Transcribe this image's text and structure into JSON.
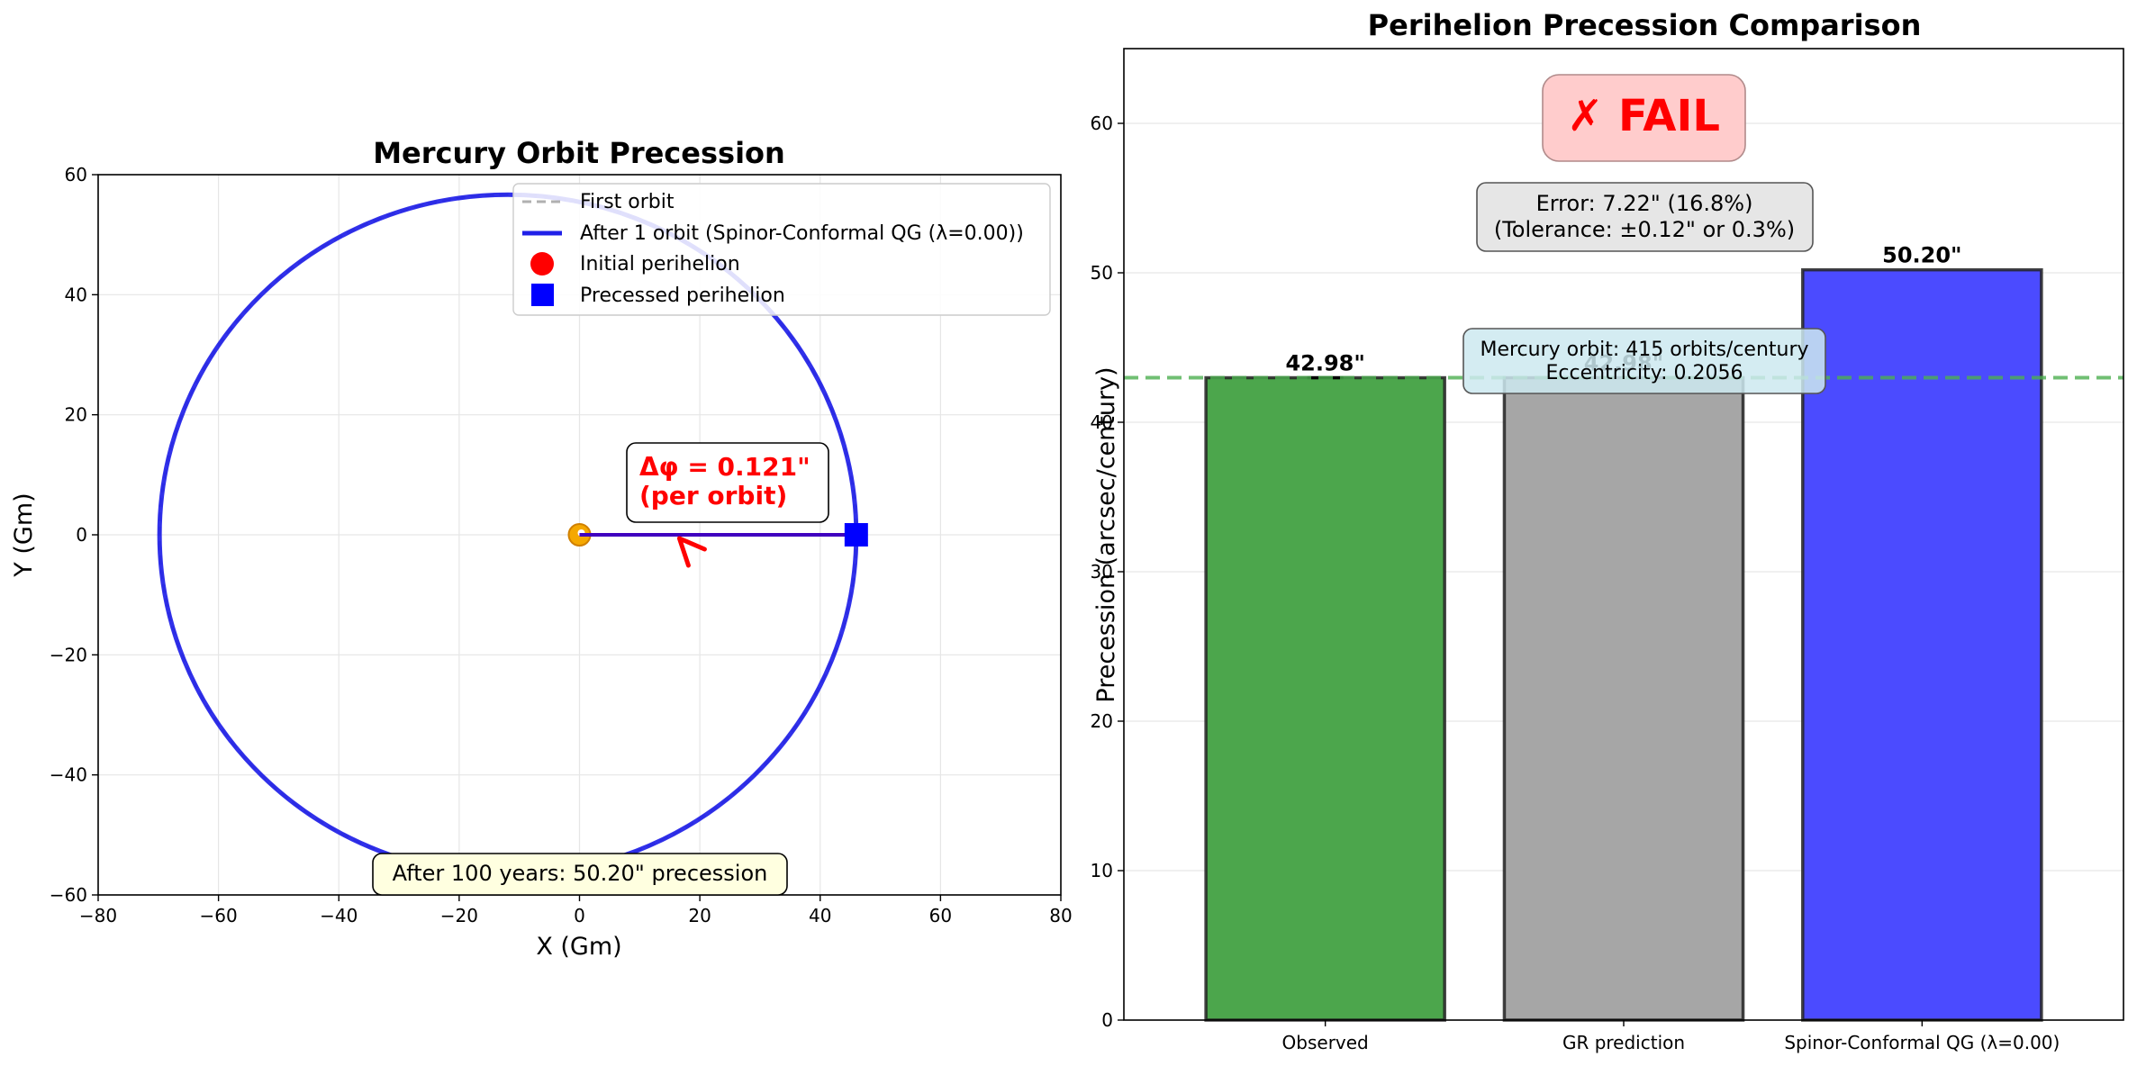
{
  "chart_data": [
    {
      "type": "line",
      "title": "Mercury Orbit Precession",
      "xlabel": "X (Gm)",
      "ylabel": "Y (Gm)",
      "xlim": [
        -80,
        80
      ],
      "ylim": [
        -60,
        60
      ],
      "xticks": [
        -80,
        -60,
        -40,
        -20,
        0,
        20,
        40,
        60,
        80
      ],
      "yticks": [
        -60,
        -40,
        -20,
        0,
        20,
        40,
        60
      ],
      "xtick_labels": [
        "−80",
        "−60",
        "−40",
        "−20",
        "0",
        "20",
        "40",
        "60",
        "80"
      ],
      "ytick_labels": [
        "−60",
        "−40",
        "−20",
        "0",
        "20",
        "40",
        "60"
      ],
      "grid": true,
      "legend_position": "upper right",
      "orbit": {
        "perihelion": 46.0,
        "aphelion": 69.8,
        "eccentricity": 0.2056
      },
      "series": [
        {
          "name": "First orbit",
          "style": "dashed",
          "color": "#b0b0b0"
        },
        {
          "name": "After 1 orbit (Spinor-Conformal QG (λ=0.00))",
          "style": "solid",
          "color": "#2020e8"
        }
      ],
      "markers": [
        {
          "name": "Initial perihelion",
          "x": 46.0,
          "y": 0,
          "shape": "circle",
          "color": "#ff0000"
        },
        {
          "name": "Precessed perihelion",
          "x": 46.0,
          "y": 0,
          "shape": "square",
          "color": "#0000ff"
        }
      ],
      "sun": {
        "x": 0,
        "y": 0,
        "color": "#f5a800"
      },
      "annotations": {
        "delta_phi": "Δφ = 0.121\"\n(per orbit)",
        "footer": "After 100 years: 50.20\" precession"
      },
      "colors": {
        "delta_text": "#ff0000",
        "footer_box": "#ffffe0",
        "arrow": "#ff0000"
      }
    },
    {
      "type": "bar",
      "title": "Perihelion Precession Comparison",
      "xlabel": "",
      "ylabel": "Precession (arcsec/century)",
      "ylim": [
        0,
        65
      ],
      "yticks": [
        0,
        10,
        20,
        30,
        40,
        50,
        60
      ],
      "grid": true,
      "categories": [
        "Observed",
        "GR prediction",
        "Spinor-Conformal QG (λ=0.00)"
      ],
      "values": [
        42.98,
        42.98,
        50.2
      ],
      "value_labels": [
        "42.98\"",
        "42.98\"",
        "50.20\""
      ],
      "error_bar": {
        "index": 0,
        "value": 0.04
      },
      "bar_colors": [
        "#4ca64c",
        "#a6a6a6",
        "#4b4bff"
      ],
      "reference_line": {
        "value": 42.98,
        "color": "#4caf50",
        "style": "dashed"
      },
      "annotations": {
        "status": "✗ FAIL",
        "error": "Error: 7.22\" (16.8%)\n(Tolerance: ±0.12\" or 0.3%)",
        "orbit_info": "Mercury orbit: 415 orbits/century\nEccentricity: 0.2056"
      },
      "colors": {
        "status_text": "#ff0000",
        "status_box": "#ffcccc",
        "error_box": "#e6e6e6",
        "info_box": "#cde9f0"
      }
    }
  ]
}
